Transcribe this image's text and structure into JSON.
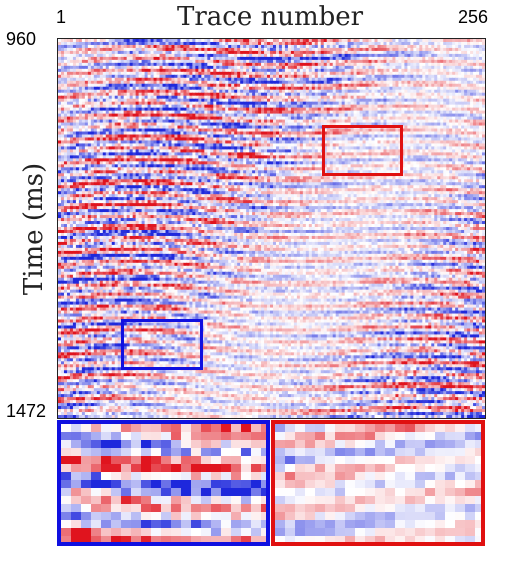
{
  "axes": {
    "title_top": "Trace number",
    "title_left": "Time (ms)",
    "x_tick_start": "1",
    "x_tick_end": "256",
    "y_tick_start": "960",
    "y_tick_end": "1472"
  },
  "colors": {
    "positive_amplitude": "#e0141e",
    "negative_amplitude": "#1e28dc",
    "zero_amplitude": "#ffffff",
    "blue_region": "#1010e0",
    "red_region": "#e01010"
  }
}
